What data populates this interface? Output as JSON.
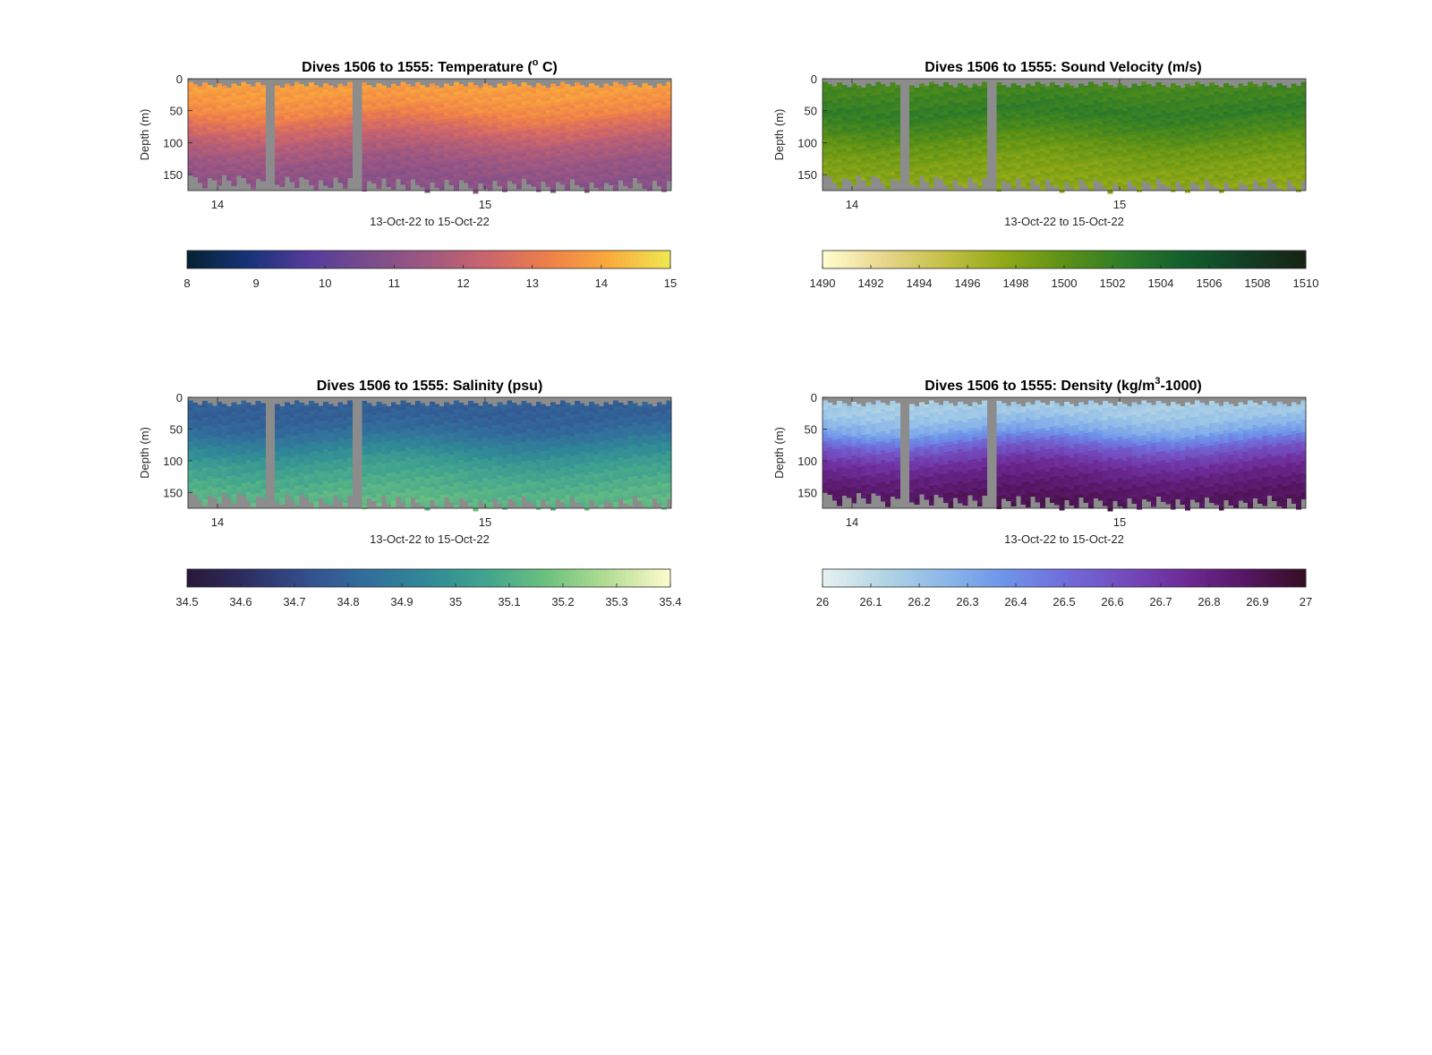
{
  "figure": {
    "background": "#ffffff",
    "no_data_color": "#8c8c8c",
    "panels": [
      {
        "id": "temperature",
        "title_main": "Dives 1506 to 1555: Temperature (",
        "title_sup": "o",
        "title_tail": " C)",
        "ylabel": "Depth (m)",
        "xlabel": "13-Oct-22 to 15-Oct-22",
        "yticks": [
          "0",
          "50",
          "100",
          "150"
        ],
        "xticks": [
          "14",
          "15"
        ],
        "colorbar_ticks": [
          "8",
          "9",
          "10",
          "11",
          "12",
          "13",
          "14",
          "15"
        ],
        "colormap": "thermal"
      },
      {
        "id": "sound-velocity",
        "title_main": "Dives 1506 to 1555: Sound Velocity (m/s)",
        "title_sup": "",
        "title_tail": "",
        "ylabel": "Depth (m)",
        "xlabel": "13-Oct-22 to 15-Oct-22",
        "yticks": [
          "0",
          "50",
          "100",
          "150"
        ],
        "xticks": [
          "14",
          "15"
        ],
        "colorbar_ticks": [
          "1490",
          "1492",
          "1494",
          "1496",
          "1498",
          "1500",
          "1502",
          "1504",
          "1506",
          "1508",
          "1510"
        ],
        "colormap": "speed"
      },
      {
        "id": "salinity",
        "title_main": "Dives 1506 to 1555: Salinity (psu)",
        "title_sup": "",
        "title_tail": "",
        "ylabel": "Depth (m)",
        "xlabel": "13-Oct-22 to 15-Oct-22",
        "yticks": [
          "0",
          "50",
          "100",
          "150"
        ],
        "xticks": [
          "14",
          "15"
        ],
        "colorbar_ticks": [
          "34.5",
          "34.6",
          "34.7",
          "34.8",
          "34.9",
          "35",
          "35.1",
          "35.2",
          "35.3",
          "35.4"
        ],
        "colormap": "haline"
      },
      {
        "id": "density",
        "title_main": "Dives 1506 to 1555: Density (kg/m",
        "title_sup": "3",
        "title_tail": "-1000)",
        "ylabel": "Depth (m)",
        "xlabel": "13-Oct-22 to 15-Oct-22",
        "yticks": [
          "0",
          "50",
          "100",
          "150"
        ],
        "xticks": [
          "14",
          "15"
        ],
        "colorbar_ticks": [
          "26",
          "26.1",
          "26.2",
          "26.3",
          "26.4",
          "26.5",
          "26.6",
          "26.7",
          "26.8",
          "26.9",
          "27"
        ],
        "colormap": "dense"
      }
    ]
  },
  "chart_data": [
    {
      "type": "heatmap",
      "title": "Dives 1506 to 1555: Temperature (o C)",
      "xlabel": "13-Oct-22 to 15-Oct-22",
      "ylabel": "Depth (m)",
      "x_ticks": [
        "14",
        "15"
      ],
      "ylim": [
        0,
        175
      ],
      "y_reversed": true,
      "colorbar": {
        "min": 8,
        "max": 15,
        "ticks": [
          8,
          9,
          10,
          11,
          12,
          13,
          14,
          15
        ],
        "units": "deg C"
      },
      "dives": {
        "first": 1506,
        "last": 1555,
        "count": 50
      },
      "gap_dives": [
        8,
        17
      ],
      "profile_depth": [
        0,
        25,
        50,
        75,
        100,
        125,
        150,
        175
      ],
      "profile_value": [
        13.9,
        13.8,
        13.4,
        12.6,
        11.9,
        11.4,
        11.1,
        11.0
      ]
    },
    {
      "type": "heatmap",
      "title": "Dives 1506 to 1555: Sound Velocity (m/s)",
      "xlabel": "13-Oct-22 to 15-Oct-22",
      "ylabel": "Depth (m)",
      "x_ticks": [
        "14",
        "15"
      ],
      "ylim": [
        0,
        175
      ],
      "y_reversed": true,
      "colorbar": {
        "min": 1490,
        "max": 1510,
        "ticks": [
          1490,
          1492,
          1494,
          1496,
          1498,
          1500,
          1502,
          1504,
          1506,
          1508,
          1510
        ],
        "units": "m/s"
      },
      "dives": {
        "first": 1506,
        "last": 1555,
        "count": 50
      },
      "gap_dives": [
        8,
        17
      ],
      "profile_depth": [
        0,
        25,
        50,
        75,
        100,
        125,
        150,
        175
      ],
      "profile_value": [
        1501.0,
        1501.6,
        1502.4,
        1501.2,
        1499.6,
        1498.6,
        1498.0,
        1497.8
      ]
    },
    {
      "type": "heatmap",
      "title": "Dives 1506 to 1555: Salinity (psu)",
      "xlabel": "13-Oct-22 to 15-Oct-22",
      "ylabel": "Depth (m)",
      "x_ticks": [
        "14",
        "15"
      ],
      "ylim": [
        0,
        175
      ],
      "y_reversed": true,
      "colorbar": {
        "min": 34.5,
        "max": 35.4,
        "ticks": [
          34.5,
          34.6,
          34.7,
          34.8,
          34.9,
          35,
          35.1,
          35.2,
          35.3,
          35.4
        ],
        "units": "psu"
      },
      "dives": {
        "first": 1506,
        "last": 1555,
        "count": 50
      },
      "gap_dives": [
        8,
        17
      ],
      "profile_depth": [
        0,
        25,
        50,
        75,
        100,
        125,
        150,
        175
      ],
      "profile_value": [
        34.78,
        34.78,
        34.82,
        34.92,
        35.02,
        35.08,
        35.12,
        35.15
      ]
    },
    {
      "type": "heatmap",
      "title": "Dives 1506 to 1555: Density (kg/m3-1000)",
      "xlabel": "13-Oct-22 to 15-Oct-22",
      "ylabel": "Depth (m)",
      "x_ticks": [
        "14",
        "15"
      ],
      "ylim": [
        0,
        175
      ],
      "y_reversed": true,
      "colorbar": {
        "min": 26,
        "max": 27,
        "ticks": [
          26,
          26.1,
          26.2,
          26.3,
          26.4,
          26.5,
          26.6,
          26.7,
          26.8,
          26.9,
          27
        ],
        "units": "kg/m3-1000"
      },
      "dives": {
        "first": 1506,
        "last": 1555,
        "count": 50
      },
      "gap_dives": [
        8,
        17
      ],
      "profile_depth": [
        0,
        25,
        50,
        75,
        100,
        125,
        150,
        175
      ],
      "profile_value": [
        26.15,
        26.18,
        26.3,
        26.55,
        26.72,
        26.82,
        26.88,
        26.92
      ]
    }
  ]
}
